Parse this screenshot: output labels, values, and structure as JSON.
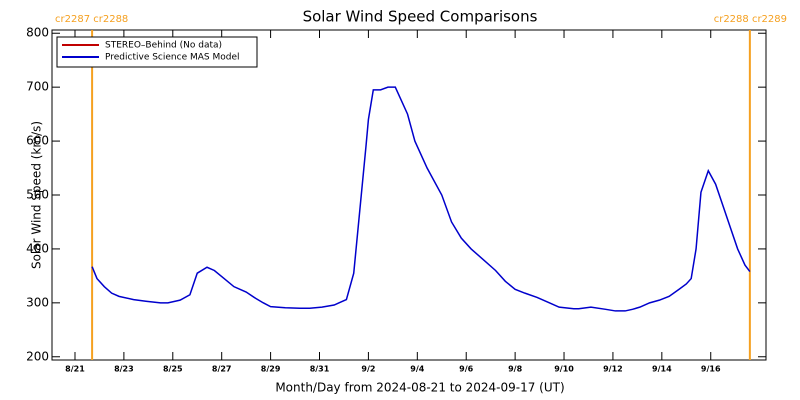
{
  "chart_data": {
    "type": "line",
    "title": "Solar Wind Speed Comparisons",
    "x_label": "Month/Day from 2024-08-21 to 2024-09-17 (UT)",
    "y_label": "Solar Wind Speed (km/s)",
    "xlim": [
      -0.94,
      28.26
    ],
    "xticks": [
      {
        "value": 0,
        "label": "8/21"
      },
      {
        "value": 2,
        "label": "8/23"
      },
      {
        "value": 4,
        "label": "8/25"
      },
      {
        "value": 6,
        "label": "8/27"
      },
      {
        "value": 8,
        "label": "8/29"
      },
      {
        "value": 10,
        "label": "8/31"
      },
      {
        "value": 12,
        "label": "9/2"
      },
      {
        "value": 14,
        "label": "9/4"
      },
      {
        "value": 16,
        "label": "9/6"
      },
      {
        "value": 18,
        "label": "9/8"
      },
      {
        "value": 20,
        "label": "9/10"
      },
      {
        "value": 22,
        "label": "9/12"
      },
      {
        "value": 24,
        "label": "9/14"
      },
      {
        "value": 26,
        "label": "9/16"
      }
    ],
    "ylim": [
      194,
      806
    ],
    "yticks": [
      200,
      300,
      400,
      500,
      600,
      700,
      800
    ],
    "legend": "upper left",
    "boundary_color": "#f5a020",
    "boundaries": [
      {
        "x": 0.7,
        "label": "cr2287 cr2288"
      },
      {
        "x": 27.6,
        "label": "cr2288 cr2289"
      }
    ],
    "x": [
      0.7,
      0.9,
      1.2,
      1.5,
      1.8,
      2.4,
      2.9,
      3.5,
      3.8,
      4.3,
      4.7,
      5.0,
      5.4,
      5.7,
      6.1,
      6.5,
      7.0,
      7.4,
      7.7,
      8.0,
      8.6,
      9.2,
      9.6,
      10.1,
      10.6,
      10.8,
      11.1,
      11.4,
      11.9,
      12.0,
      12.2,
      12.5,
      12.8,
      13.1,
      13.3,
      13.6,
      13.9,
      14.4,
      15.0,
      15.4,
      15.8,
      16.2,
      16.7,
      17.2,
      17.6,
      18.0,
      18.4,
      18.9,
      19.4,
      19.8,
      20.4,
      20.6,
      21.1,
      21.7,
      22.1,
      22.5,
      22.8,
      23.1,
      23.5,
      23.9,
      24.3,
      24.7,
      25.0,
      25.2,
      25.4,
      25.6,
      25.9,
      26.2,
      26.5,
      26.8,
      27.1,
      27.4,
      27.6
    ],
    "series": [
      {
        "name": "STEREO–Behind (No data)",
        "color": "#c00000",
        "values": [
          null,
          null,
          null,
          null,
          null,
          null,
          null,
          null,
          null,
          null,
          null,
          null,
          null,
          null,
          null,
          null,
          null,
          null,
          null,
          null,
          null,
          null,
          null,
          null,
          null,
          null,
          null,
          null,
          null,
          null,
          null,
          null,
          null,
          null,
          null,
          null,
          null,
          null,
          null,
          null,
          null,
          null,
          null,
          null,
          null,
          null,
          null,
          null,
          null,
          null,
          null,
          null,
          null,
          null,
          null,
          null,
          null,
          null,
          null,
          null,
          null,
          null,
          null,
          null,
          null,
          null,
          null,
          null,
          null,
          null,
          null,
          null,
          null
        ]
      },
      {
        "name": "Predictive Science MAS Model",
        "color": "#0000cc",
        "values": [
          367,
          345,
          330,
          318,
          312,
          306,
          303,
          300,
          300,
          305,
          315,
          355,
          366,
          360,
          345,
          330,
          320,
          308,
          300,
          293,
          291,
          290,
          290,
          292,
          296,
          300,
          306,
          355,
          590,
          640,
          695,
          695,
          700,
          700,
          680,
          650,
          600,
          550,
          500,
          450,
          420,
          400,
          380,
          360,
          340,
          325,
          318,
          310,
          300,
          292,
          289,
          289,
          292,
          288,
          285,
          285,
          288,
          292,
          300,
          305,
          312,
          325,
          335,
          345,
          400,
          505,
          545,
          520,
          480,
          440,
          400,
          370,
          358
        ]
      }
    ]
  }
}
